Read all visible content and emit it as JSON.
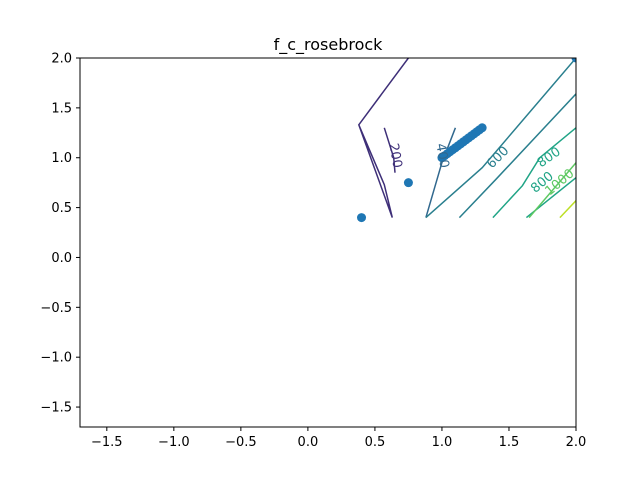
{
  "chart_data": {
    "type": "scatter",
    "title": "f_c_rosebrock",
    "xlabel": "",
    "ylabel": "",
    "xlim": [
      -1.7,
      2.0
    ],
    "ylim": [
      -1.7,
      2.0
    ],
    "x_ticks": [
      -1.5,
      -1.0,
      -0.5,
      0.0,
      0.5,
      1.0,
      1.5,
      2.0
    ],
    "y_ticks": [
      -1.5,
      -1.0,
      -0.5,
      0.0,
      0.5,
      1.0,
      1.5,
      2.0
    ],
    "x_tick_labels": [
      "−1.5",
      "−1.0",
      "−0.5",
      "0.0",
      "0.5",
      "1.0",
      "1.5",
      "2.0"
    ],
    "y_tick_labels": [
      "−1.5",
      "−1.0",
      "−0.5",
      "0.0",
      "0.5",
      "1.0",
      "1.5",
      "2.0"
    ],
    "grid": false,
    "contours": [
      {
        "level": 200,
        "label": "200",
        "color": "#3e2f78",
        "paths": [
          [
            [
              0.38,
              1.33
            ],
            [
              0.63,
              0.4
            ],
            [
              0.57,
              0.73
            ],
            [
              0.38,
              1.33
            ],
            [
              0.75,
              2.0
            ]
          ],
          [
            [
              0.57,
              1.3
            ],
            [
              0.64,
              1.0
            ],
            [
              0.65,
              0.85
            ]
          ]
        ],
        "label_pos": [
          0.65,
          1.02
        ],
        "label_rot": 80
      },
      {
        "level": 400,
        "label": "400",
        "color": "#31688e",
        "paths": [
          [
            [
              0.88,
              0.4
            ],
            [
              1.0,
              0.95
            ],
            [
              1.1,
              1.3
            ]
          ]
        ],
        "label_pos": [
          1.0,
          1.02
        ],
        "label_rot": 80
      },
      {
        "level": 600,
        "label": "600",
        "color": "#2a7f8e",
        "paths": [
          [
            [
              0.88,
              0.4
            ],
            [
              1.3,
              0.9
            ],
            [
              2.0,
              2.0
            ]
          ],
          [
            [
              1.13,
              0.4
            ],
            [
              1.4,
              0.78
            ],
            [
              2.0,
              1.64
            ]
          ]
        ],
        "label_pos": [
          1.42,
          1.0
        ],
        "label_rot": -45
      },
      {
        "level": 800,
        "label": "800",
        "color": "#20a486",
        "paths": [
          [
            [
              1.38,
              0.4
            ],
            [
              1.6,
              0.72
            ],
            [
              1.73,
              1.0
            ],
            [
              2.0,
              1.3
            ]
          ],
          [
            [
              1.63,
              0.4
            ],
            [
              2.0,
              0.8
            ]
          ]
        ],
        "label_pos": [
          1.75,
          0.75
        ],
        "label_rot": -40,
        "label2": "800",
        "label2_pos": [
          1.8,
          1.0
        ],
        "label2_rot": -35
      },
      {
        "level": 1000,
        "label": "1000",
        "color": "#5ec962",
        "paths": [
          [
            [
              1.65,
              0.4
            ],
            [
              2.0,
              0.95
            ]
          ]
        ],
        "label_pos": [
          1.88,
          0.75
        ],
        "label_rot": -40
      },
      {
        "level": 1200,
        "label": "",
        "color": "#bddf26",
        "paths": [
          [
            [
              1.88,
              0.4
            ],
            [
              2.0,
              0.57
            ]
          ]
        ]
      }
    ],
    "points": [
      {
        "x": 0.4,
        "y": 0.4
      },
      {
        "x": 0.75,
        "y": 0.75
      },
      {
        "x": 1.0,
        "y": 1.0
      },
      {
        "x": 1.02,
        "y": 1.02
      },
      {
        "x": 1.04,
        "y": 1.04
      },
      {
        "x": 1.06,
        "y": 1.06
      },
      {
        "x": 1.08,
        "y": 1.08
      },
      {
        "x": 1.1,
        "y": 1.1
      },
      {
        "x": 1.12,
        "y": 1.12
      },
      {
        "x": 1.14,
        "y": 1.14
      },
      {
        "x": 1.16,
        "y": 1.16
      },
      {
        "x": 1.18,
        "y": 1.18
      },
      {
        "x": 1.2,
        "y": 1.2
      },
      {
        "x": 1.22,
        "y": 1.22
      },
      {
        "x": 1.24,
        "y": 1.24
      },
      {
        "x": 1.26,
        "y": 1.26
      },
      {
        "x": 1.28,
        "y": 1.28
      },
      {
        "x": 1.3,
        "y": 1.3
      },
      {
        "x": 2.0,
        "y": 2.0
      }
    ],
    "point_color": "#1f77b4"
  }
}
